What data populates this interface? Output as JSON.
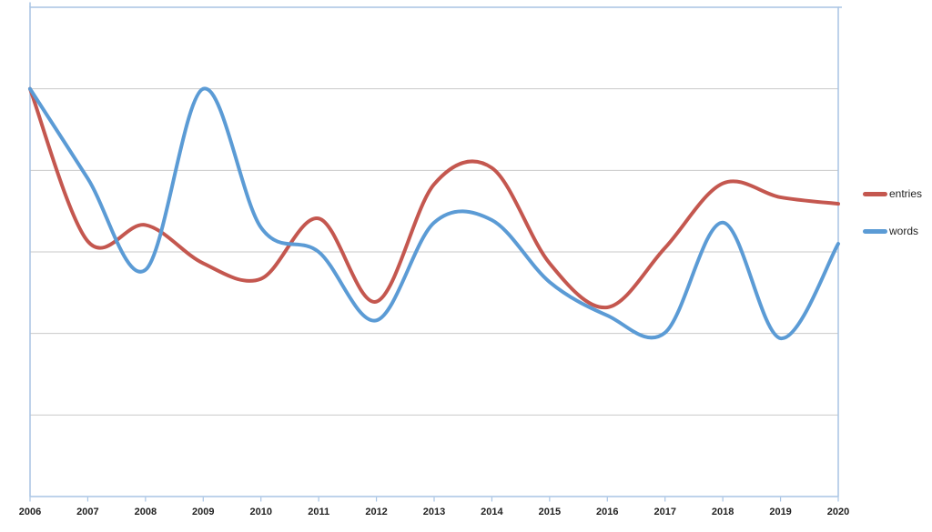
{
  "chart_data": {
    "type": "line",
    "smooth": true,
    "title": "",
    "xlabel": "",
    "ylabel": "",
    "x": [
      2006,
      2007,
      2008,
      2009,
      2010,
      2011,
      2012,
      2013,
      2014,
      2015,
      2016,
      2017,
      2018,
      2019,
      2020
    ],
    "x_tick_labels": [
      "2006",
      "2007",
      "2008",
      "2009",
      "2010",
      "2011",
      "2012",
      "2013",
      "2014",
      "2015",
      "2016",
      "2017",
      "2018",
      "2019",
      "2020"
    ],
    "y_tick_labels": [],
    "ylim": [
      0,
      6
    ],
    "grid": "horizontal",
    "gridline_count": 5,
    "legend_position": "right",
    "value_units": "relative gridline units (y axis shows no numeric labels; plot height spans 6 gridline divisions)",
    "series": [
      {
        "name": "entries",
        "color": "#C4574F",
        "values": [
          5.0,
          3.13,
          3.33,
          2.86,
          2.67,
          3.41,
          2.39,
          3.83,
          4.03,
          2.86,
          2.32,
          3.05,
          3.84,
          3.67,
          3.59
        ]
      },
      {
        "name": "words",
        "color": "#5B9BD5",
        "values": [
          5.0,
          3.9,
          2.78,
          5.0,
          3.3,
          3.0,
          2.16,
          3.36,
          3.39,
          2.63,
          2.22,
          2.01,
          3.36,
          1.94,
          3.1
        ]
      }
    ]
  },
  "colors": {
    "axis_border": "#A8C4E4",
    "gridline": "#C9C9C9",
    "tick_label": "#1F1F1F",
    "legend_label": "#1F1F1F",
    "background": "#FFFFFF"
  }
}
